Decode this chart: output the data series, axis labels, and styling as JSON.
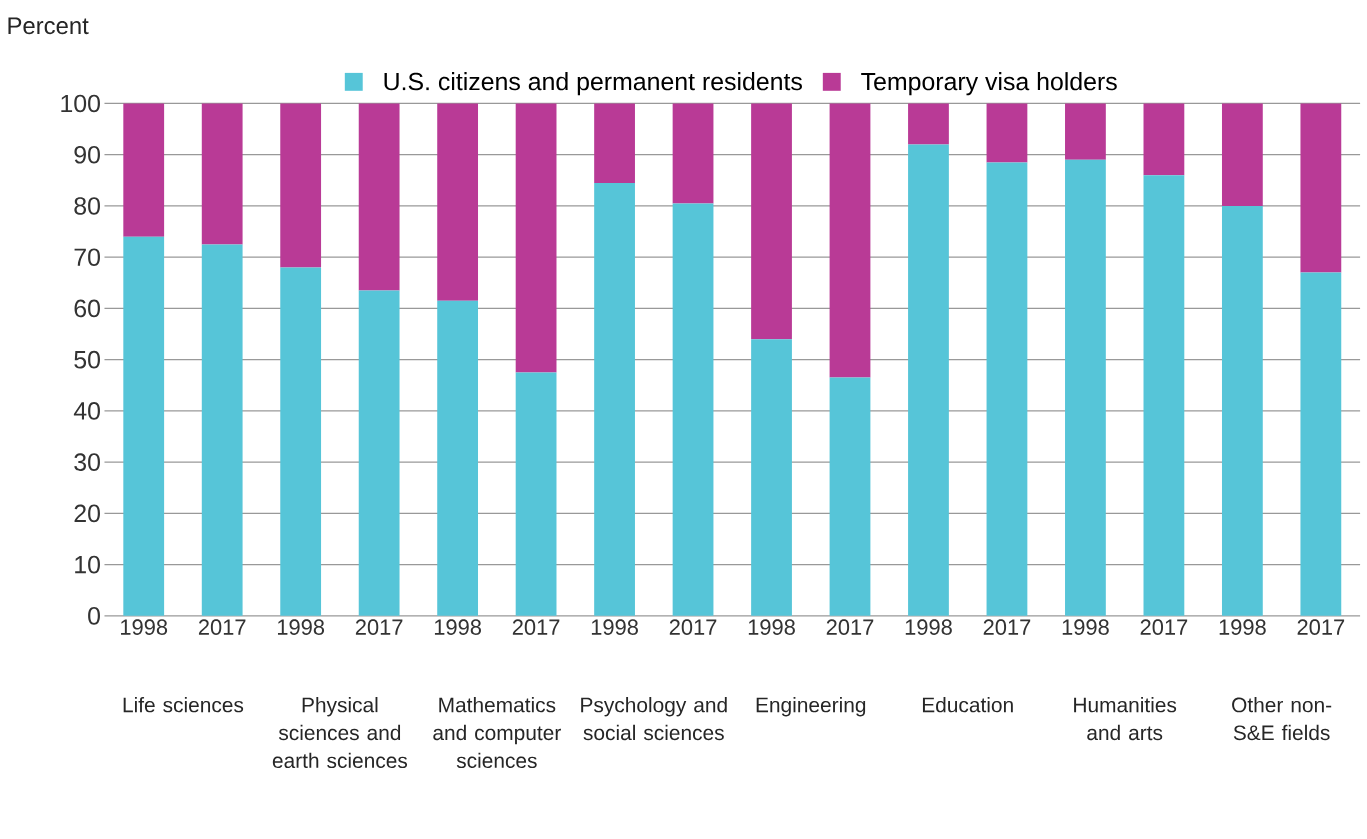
{
  "chart_data": {
    "type": "bar",
    "stacked": true,
    "ylabel": "Percent",
    "categories": [
      "1998",
      "2017",
      "1998",
      "2017",
      "1998",
      "2017",
      "1998",
      "2017",
      "1998",
      "2017",
      "1998",
      "2017",
      "1998",
      "2017",
      "1998",
      "2017"
    ],
    "series": [
      {
        "name": "U.S. citizens and permanent residents",
        "color": "#56c5d8",
        "values": [
          74,
          72.5,
          68,
          63.5,
          61.5,
          47.5,
          84.5,
          80.5,
          54,
          46.5,
          92,
          88.5,
          89,
          86,
          80,
          67
        ]
      },
      {
        "name": "Temporary visa holders",
        "color": "#b93a96",
        "values": [
          26,
          27.5,
          32,
          36.5,
          38.5,
          52.5,
          15.5,
          19.5,
          46,
          53.5,
          8,
          11.5,
          11,
          14,
          20,
          33
        ]
      }
    ],
    "ylim": [
      0,
      100
    ],
    "yticks": [
      0,
      10,
      20,
      30,
      40,
      50,
      60,
      70,
      80,
      90,
      100
    ],
    "grid": "y",
    "legend": "top",
    "annotations": [
      "Life sciences",
      "Physical sciences and earth sciences",
      "Mathematics and computer sciences",
      "Psychology and social sciences",
      "Engineering",
      "Education",
      "Humanities and arts",
      "Other non-S&E fields"
    ]
  }
}
